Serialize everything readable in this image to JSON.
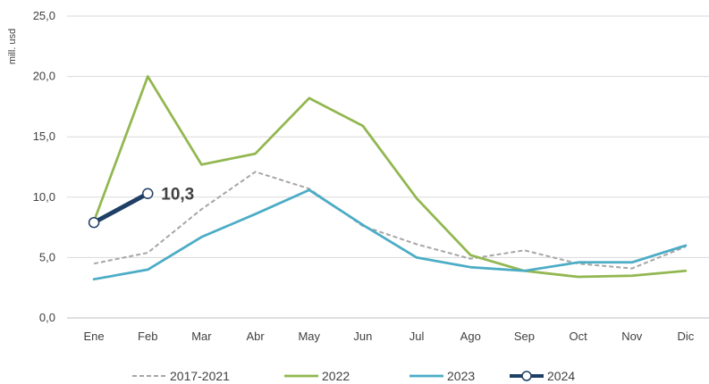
{
  "chart_data": {
    "type": "line",
    "ylabel": "mill. usd",
    "ylim": [
      0,
      25
    ],
    "y_ticks": [
      "0,0",
      "5,0",
      "10,0",
      "15,0",
      "20,0",
      "25,0"
    ],
    "categories": [
      "Ene",
      "Feb",
      "Mar",
      "Abr",
      "May",
      "Jun",
      "Jul",
      "Ago",
      "Sep",
      "Oct",
      "Nov",
      "Dic"
    ],
    "grid": true,
    "legend_position": "bottom",
    "series": [
      {
        "name": "2017-2021",
        "color": "#a6a6a6",
        "style": "dashed",
        "values": [
          4.5,
          5.4,
          9.0,
          12.1,
          10.7,
          7.6,
          6.1,
          4.9,
          5.6,
          4.5,
          4.1,
          5.9
        ]
      },
      {
        "name": "2022",
        "color": "#92b750",
        "style": "solid",
        "values": [
          8.0,
          20.0,
          12.7,
          13.6,
          18.2,
          15.9,
          9.9,
          5.2,
          3.9,
          3.4,
          3.5,
          3.9
        ]
      },
      {
        "name": "2023",
        "color": "#4bacc6",
        "style": "solid",
        "values": [
          3.2,
          4.0,
          6.7,
          8.6,
          10.6,
          7.7,
          5.0,
          4.2,
          3.9,
          4.6,
          4.6,
          6.0
        ]
      },
      {
        "name": "2024",
        "color": "#1f3f66",
        "style": "solid-markers",
        "values": [
          7.9,
          10.3,
          null,
          null,
          null,
          null,
          null,
          null,
          null,
          null,
          null,
          null
        ]
      }
    ],
    "annotations": [
      {
        "series": "2024",
        "category": "Feb",
        "text": "10,3"
      }
    ]
  }
}
